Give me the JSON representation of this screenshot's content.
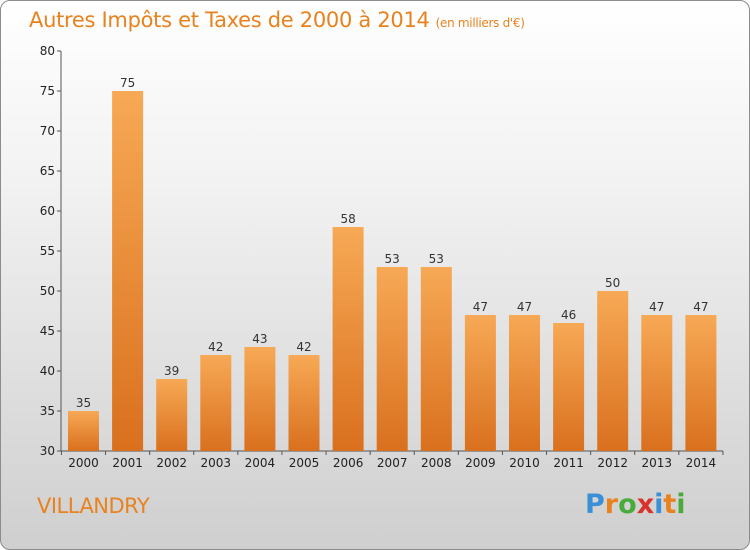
{
  "title": "Autres Impôts et Taxes de 2000 à 2014",
  "unit": "(en milliers d'€)",
  "place": "VILLANDRY",
  "logo": {
    "letters": [
      "P",
      "r",
      "o",
      "x",
      "i",
      "t",
      "i"
    ],
    "colors": [
      "#3b8fd6",
      "#e8821e",
      "#4aab3c",
      "#d9322c",
      "#3b8fd6",
      "#e8821e",
      "#4aab3c"
    ]
  },
  "colors": {
    "bar_light": "#f7a955",
    "bar_dark": "#d9701e",
    "title": "#e8821e"
  },
  "chart_data": {
    "type": "bar",
    "title": "Autres Impôts et Taxes de 2000 à 2014",
    "subtitle": "(en milliers d'€)",
    "categories": [
      "2000",
      "2001",
      "2002",
      "2003",
      "2004",
      "2005",
      "2006",
      "2007",
      "2008",
      "2009",
      "2010",
      "2011",
      "2012",
      "2013",
      "2014"
    ],
    "values": [
      35,
      75,
      39,
      42,
      43,
      42,
      58,
      53,
      53,
      47,
      47,
      46,
      50,
      47,
      47
    ],
    "ylim": [
      30,
      80
    ],
    "yticks": [
      30,
      35,
      40,
      45,
      50,
      55,
      60,
      65,
      70,
      75,
      80
    ],
    "grid": false,
    "data_labels": true
  }
}
